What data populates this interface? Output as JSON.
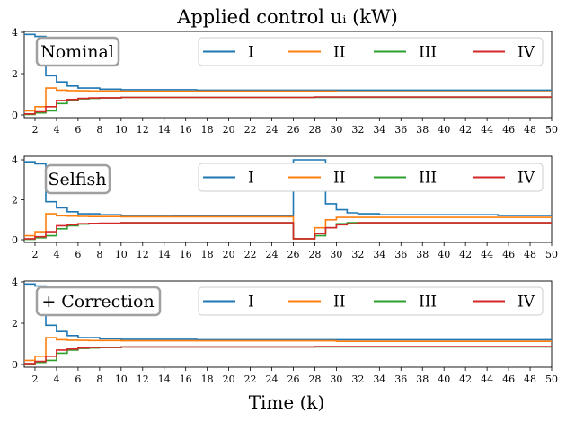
{
  "figure": {
    "title": "Applied control uᵢ (kW)",
    "xlabel": "Time (k)",
    "x_ticks": [
      2,
      4,
      6,
      8,
      10,
      12,
      14,
      16,
      18,
      20,
      22,
      24,
      26,
      28,
      30,
      32,
      34,
      36,
      38,
      40,
      42,
      44,
      46,
      48,
      50
    ],
    "y_ticks": [
      0,
      2,
      4
    ]
  },
  "chart_data": [
    {
      "type": "line",
      "subtitle": "Nominal",
      "xlim": [
        1,
        50
      ],
      "ylim": [
        0,
        4
      ],
      "legend_position": "top-right",
      "series": [
        {
          "name": "I",
          "color": "#1f77b4",
          "points": [
            [
              1,
              3.9
            ],
            [
              2,
              3.8
            ],
            [
              3,
              1.9
            ],
            [
              4,
              1.6
            ],
            [
              5,
              1.4
            ],
            [
              6,
              1.3
            ],
            [
              7,
              1.3
            ],
            [
              8,
              1.25
            ],
            [
              10,
              1.22
            ],
            [
              17,
              1.2
            ],
            [
              50,
              1.2
            ]
          ]
        },
        {
          "name": "II",
          "color": "#ff7f0e",
          "points": [
            [
              1,
              0.2
            ],
            [
              2,
              0.4
            ],
            [
              3,
              1.3
            ],
            [
              4,
              1.2
            ],
            [
              5,
              1.18
            ],
            [
              6,
              1.17
            ],
            [
              7,
              1.16
            ],
            [
              10,
              1.15
            ],
            [
              30,
              1.12
            ],
            [
              50,
              1.12
            ]
          ]
        },
        {
          "name": "III",
          "color": "#2ca02c",
          "points": [
            [
              1,
              0.02
            ],
            [
              2,
              0.1
            ],
            [
              3,
              0.2
            ],
            [
              4,
              0.55
            ],
            [
              5,
              0.7
            ],
            [
              6,
              0.78
            ],
            [
              7,
              0.8
            ],
            [
              8,
              0.82
            ],
            [
              10,
              0.85
            ],
            [
              50,
              0.85
            ]
          ]
        },
        {
          "name": "IV",
          "color": "#d62728",
          "points": [
            [
              1,
              0.05
            ],
            [
              2,
              0.15
            ],
            [
              3,
              0.4
            ],
            [
              4,
              0.7
            ],
            [
              5,
              0.75
            ],
            [
              6,
              0.8
            ],
            [
              7,
              0.82
            ],
            [
              8,
              0.83
            ],
            [
              10,
              0.85
            ],
            [
              28,
              0.87
            ],
            [
              50,
              0.87
            ]
          ]
        }
      ]
    },
    {
      "type": "line",
      "subtitle": "Selfish",
      "xlim": [
        1,
        50
      ],
      "ylim": [
        0,
        4
      ],
      "legend_position": "top-right",
      "series": [
        {
          "name": "I",
          "color": "#1f77b4",
          "points": [
            [
              1,
              3.9
            ],
            [
              2,
              3.8
            ],
            [
              3,
              1.9
            ],
            [
              4,
              1.6
            ],
            [
              5,
              1.4
            ],
            [
              6,
              1.3
            ],
            [
              7,
              1.3
            ],
            [
              8,
              1.25
            ],
            [
              10,
              1.22
            ],
            [
              15,
              1.2
            ],
            [
              26,
              4.0
            ],
            [
              28,
              4.0
            ],
            [
              29,
              1.8
            ],
            [
              30,
              1.5
            ],
            [
              31,
              1.35
            ],
            [
              32,
              1.3
            ],
            [
              34,
              1.25
            ],
            [
              45,
              1.22
            ],
            [
              50,
              1.22
            ]
          ]
        },
        {
          "name": "II",
          "color": "#ff7f0e",
          "points": [
            [
              1,
              0.2
            ],
            [
              2,
              0.4
            ],
            [
              3,
              1.3
            ],
            [
              4,
              1.2
            ],
            [
              5,
              1.18
            ],
            [
              6,
              1.17
            ],
            [
              7,
              1.16
            ],
            [
              10,
              1.15
            ],
            [
              26,
              0.05
            ],
            [
              28,
              0.6
            ],
            [
              29,
              1.0
            ],
            [
              30,
              1.12
            ],
            [
              50,
              1.12
            ]
          ]
        },
        {
          "name": "III",
          "color": "#2ca02c",
          "points": [
            [
              1,
              0.02
            ],
            [
              2,
              0.1
            ],
            [
              3,
              0.2
            ],
            [
              4,
              0.55
            ],
            [
              5,
              0.7
            ],
            [
              6,
              0.78
            ],
            [
              7,
              0.8
            ],
            [
              8,
              0.82
            ],
            [
              10,
              0.85
            ],
            [
              26,
              0.05
            ],
            [
              28,
              0.2
            ],
            [
              29,
              0.6
            ],
            [
              30,
              0.8
            ],
            [
              31,
              0.85
            ],
            [
              50,
              0.85
            ]
          ]
        },
        {
          "name": "IV",
          "color": "#d62728",
          "points": [
            [
              1,
              0.05
            ],
            [
              2,
              0.15
            ],
            [
              3,
              0.4
            ],
            [
              4,
              0.7
            ],
            [
              5,
              0.75
            ],
            [
              6,
              0.8
            ],
            [
              7,
              0.82
            ],
            [
              8,
              0.83
            ],
            [
              10,
              0.85
            ],
            [
              26,
              0.05
            ],
            [
              28,
              0.3
            ],
            [
              29,
              0.6
            ],
            [
              30,
              0.75
            ],
            [
              31,
              0.8
            ],
            [
              32,
              0.85
            ],
            [
              50,
              0.85
            ]
          ]
        }
      ]
    },
    {
      "type": "line",
      "subtitle": "+ Correction",
      "xlim": [
        1,
        50
      ],
      "ylim": [
        0,
        4
      ],
      "legend_position": "top-right",
      "series": [
        {
          "name": "I",
          "color": "#1f77b4",
          "points": [
            [
              1,
              3.9
            ],
            [
              2,
              3.8
            ],
            [
              3,
              1.9
            ],
            [
              4,
              1.6
            ],
            [
              5,
              1.4
            ],
            [
              6,
              1.3
            ],
            [
              7,
              1.3
            ],
            [
              8,
              1.25
            ],
            [
              10,
              1.22
            ],
            [
              17,
              1.2
            ],
            [
              50,
              1.2
            ]
          ]
        },
        {
          "name": "II",
          "color": "#ff7f0e",
          "points": [
            [
              1,
              0.2
            ],
            [
              2,
              0.4
            ],
            [
              3,
              1.3
            ],
            [
              4,
              1.2
            ],
            [
              5,
              1.18
            ],
            [
              6,
              1.17
            ],
            [
              7,
              1.16
            ],
            [
              10,
              1.15
            ],
            [
              30,
              1.12
            ],
            [
              50,
              1.12
            ]
          ]
        },
        {
          "name": "III",
          "color": "#2ca02c",
          "points": [
            [
              1,
              0.02
            ],
            [
              2,
              0.1
            ],
            [
              3,
              0.2
            ],
            [
              4,
              0.55
            ],
            [
              5,
              0.7
            ],
            [
              6,
              0.78
            ],
            [
              7,
              0.8
            ],
            [
              8,
              0.82
            ],
            [
              10,
              0.85
            ],
            [
              50,
              0.85
            ]
          ]
        },
        {
          "name": "IV",
          "color": "#d62728",
          "points": [
            [
              1,
              0.05
            ],
            [
              2,
              0.15
            ],
            [
              3,
              0.4
            ],
            [
              4,
              0.7
            ],
            [
              5,
              0.75
            ],
            [
              6,
              0.8
            ],
            [
              7,
              0.82
            ],
            [
              8,
              0.83
            ],
            [
              10,
              0.85
            ],
            [
              28,
              0.87
            ],
            [
              50,
              0.87
            ]
          ]
        }
      ]
    }
  ]
}
